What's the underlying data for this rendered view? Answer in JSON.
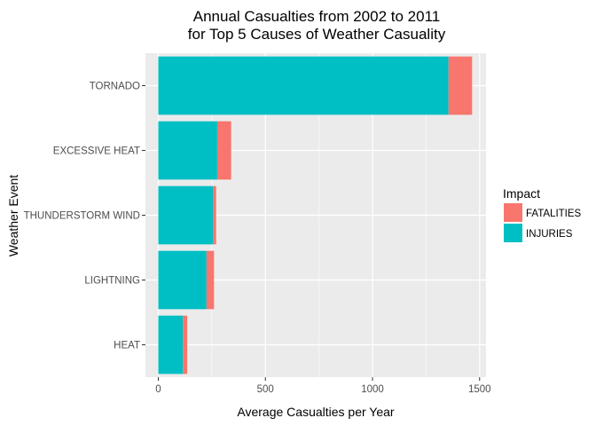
{
  "chart_data": {
    "type": "bar",
    "orientation": "horizontal",
    "stacked": true,
    "title": "Annual Casualties from 2002 to 2011",
    "subtitle": "for Top 5 Causes of Weather Casuality",
    "xlabel": "Average Casualties per Year",
    "ylabel": "Weather Event",
    "xlim": [
      -60,
      1530
    ],
    "xticks": [
      0,
      500,
      1000,
      1500
    ],
    "categories": [
      "TORNADO",
      "EXCESSIVE HEAT",
      "THUNDERSTORM WIND",
      "LIGHTNING",
      "HEAT"
    ],
    "series": [
      {
        "name": "INJURIES",
        "color": "#00BFC4",
        "values": [
          1355,
          275,
          255,
          225,
          115
        ]
      },
      {
        "name": "FATALITIES",
        "color": "#F8766D",
        "values": [
          110,
          65,
          15,
          35,
          20
        ]
      }
    ],
    "legend": {
      "title": "Impact",
      "position": "right",
      "entries": [
        {
          "label": "FATALITIES",
          "color": "#F8766D"
        },
        {
          "label": "INJURIES",
          "color": "#00BFC4"
        }
      ]
    },
    "panel_background": "#EBEBEB",
    "grid_color": "#FFFFFF",
    "grid": true
  }
}
